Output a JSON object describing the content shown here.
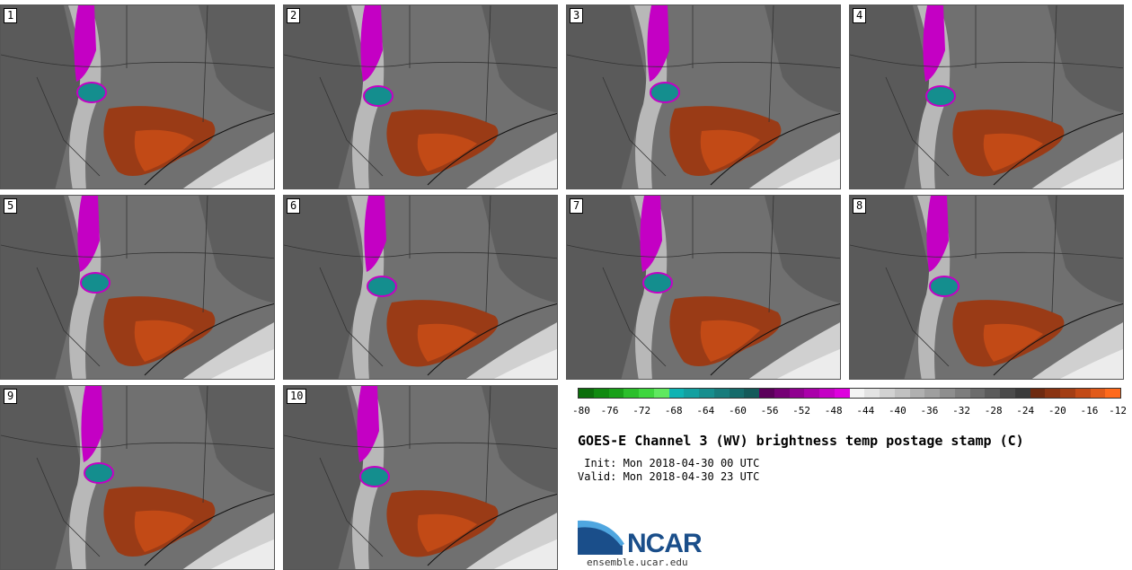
{
  "panels": [
    {
      "number": "1"
    },
    {
      "number": "2"
    },
    {
      "number": "3"
    },
    {
      "number": "4"
    },
    {
      "number": "5"
    },
    {
      "number": "6"
    },
    {
      "number": "7"
    },
    {
      "number": "8"
    },
    {
      "number": "9"
    },
    {
      "number": "10"
    }
  ],
  "colorbar": {
    "ticks": [
      "-80",
      "-76",
      "-72",
      "-68",
      "-64",
      "-60",
      "-56",
      "-52",
      "-48",
      "-44",
      "-40",
      "-36",
      "-32",
      "-28",
      "-24",
      "-20",
      "-16",
      "-12"
    ],
    "colors": [
      "#0b6e0b",
      "#108a10",
      "#19a019",
      "#2bbf2b",
      "#3ed63e",
      "#5fe85f",
      "#0fb3b3",
      "#13a0a0",
      "#168e8e",
      "#177c7c",
      "#156b6b",
      "#145a5a",
      "#5a005a",
      "#750075",
      "#900090",
      "#aa00aa",
      "#c400c4",
      "#de00de",
      "#f4f4f4",
      "#e3e3e3",
      "#d2d2d2",
      "#c1c1c1",
      "#b0b0b0",
      "#9f9f9f",
      "#8e8e8e",
      "#7d7d7d",
      "#6c6c6c",
      "#5b5b5b",
      "#4a4a4a",
      "#3a3a3a",
      "#6e2a10",
      "#8a3412",
      "#a33e14",
      "#c24a16",
      "#e05a1a",
      "#ff6a1c"
    ]
  },
  "title": "GOES-E Channel 3 (WV) brightness temp postage stamp (C)",
  "init": " Init: Mon 2018-04-30 00 UTC",
  "valid": "Valid: Mon 2018-04-30 23 UTC",
  "logo": {
    "text": "NCAR",
    "url": "ensemble.ucar.edu"
  }
}
